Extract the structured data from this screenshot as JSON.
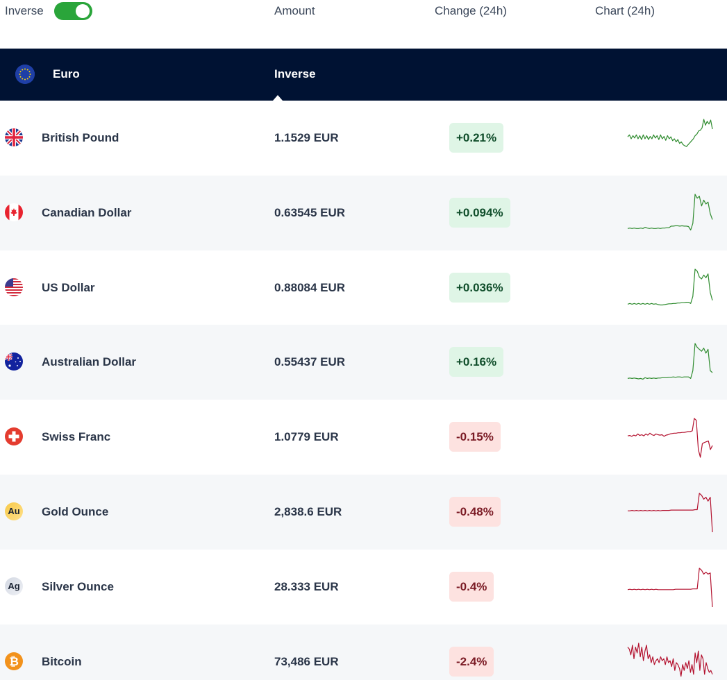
{
  "header": {
    "inverse_label": "Inverse",
    "inverse_on": true,
    "columns": [
      "Amount",
      "Change (24h)",
      "Chart (24h)"
    ],
    "toggle_color": "#2aa53a"
  },
  "base": {
    "currency": "Euro",
    "icon": "eu-flag-icon",
    "mode": "Inverse",
    "bar_color": "#001233"
  },
  "colors": {
    "up_line": "#2e8b2e",
    "down_line": "#b3112e",
    "up_badge_bg": "#dff5e6",
    "down_badge_bg": "#fde2e0"
  },
  "rows": [
    {
      "name": "British Pound",
      "icon": "uk-flag-icon",
      "amount": "1.1529 EUR",
      "change": "+0.21%",
      "direction": "up",
      "chart": [
        0.55,
        0.6,
        0.5,
        0.58,
        0.52,
        0.6,
        0.5,
        0.58,
        0.48,
        0.6,
        0.5,
        0.58,
        0.48,
        0.56,
        0.5,
        0.6,
        0.52,
        0.58,
        0.48,
        0.6,
        0.5,
        0.56,
        0.46,
        0.58,
        0.5,
        0.55,
        0.45,
        0.5,
        0.42,
        0.48,
        0.38,
        0.42,
        0.35,
        0.32,
        0.3,
        0.35,
        0.4,
        0.45,
        0.5,
        0.58,
        0.62,
        0.7,
        0.72,
        0.78,
        1.0,
        0.85,
        0.95,
        0.88,
        0.98,
        0.75
      ]
    },
    {
      "name": "Canadian Dollar",
      "icon": "canada-flag-icon",
      "amount": "0.63545 EUR",
      "change": "+0.094%",
      "direction": "up",
      "chart": [
        0.12,
        0.13,
        0.12,
        0.13,
        0.12,
        0.12,
        0.13,
        0.12,
        0.15,
        0.13,
        0.12,
        0.13,
        0.12,
        0.12,
        0.13,
        0.12,
        0.13,
        0.13,
        0.14,
        0.14,
        0.18,
        0.18,
        0.19,
        0.19,
        0.18,
        0.19,
        0.18,
        0.18,
        0.17,
        0.08,
        0.25,
        1.0,
        0.9,
        0.95,
        0.7,
        0.85,
        0.75,
        0.8,
        0.5,
        0.35
      ]
    },
    {
      "name": "US Dollar",
      "icon": "us-flag-icon",
      "amount": "0.88084 EUR",
      "change": "+0.036%",
      "direction": "up",
      "chart": [
        0.1,
        0.12,
        0.1,
        0.12,
        0.1,
        0.12,
        0.1,
        0.12,
        0.1,
        0.12,
        0.1,
        0.12,
        0.1,
        0.11,
        0.09,
        0.08,
        0.08,
        0.09,
        0.1,
        0.11,
        0.11,
        0.12,
        0.12,
        0.13,
        0.13,
        0.14,
        0.14,
        0.15,
        0.15,
        0.12,
        0.3,
        1.0,
        0.95,
        0.8,
        0.75,
        0.85,
        0.78,
        0.88,
        0.4,
        0.2
      ]
    },
    {
      "name": "Australian Dollar",
      "icon": "australia-flag-icon",
      "amount": "0.55437 EUR",
      "change": "+0.16%",
      "direction": "up",
      "chart": [
        0.1,
        0.11,
        0.1,
        0.11,
        0.1,
        0.09,
        0.1,
        0.08,
        0.12,
        0.1,
        0.11,
        0.1,
        0.11,
        0.1,
        0.11,
        0.11,
        0.12,
        0.12,
        0.12,
        0.13,
        0.13,
        0.14,
        0.13,
        0.14,
        0.14,
        0.13,
        0.14,
        0.14,
        0.14,
        0.1,
        0.3,
        1.0,
        0.9,
        0.85,
        0.8,
        0.88,
        0.75,
        0.85,
        0.3,
        0.25
      ]
    },
    {
      "name": "Swiss Franc",
      "icon": "switzerland-flag-icon",
      "amount": "1.0779 EUR",
      "change": "-0.15%",
      "direction": "down",
      "chart": [
        0.55,
        0.56,
        0.54,
        0.57,
        0.55,
        0.6,
        0.56,
        0.58,
        0.55,
        0.6,
        0.57,
        0.62,
        0.58,
        0.56,
        0.6,
        0.58,
        0.57,
        0.58,
        0.54,
        0.57,
        0.58,
        0.6,
        0.61,
        0.62,
        0.62,
        0.63,
        0.63,
        0.64,
        0.64,
        0.65,
        0.66,
        0.66,
        0.68,
        1.0,
        0.95,
        0.2,
        0.0,
        0.35,
        0.38,
        0.4,
        0.42,
        0.2,
        0.3
      ]
    },
    {
      "name": "Gold Ounce",
      "icon": "gold-icon",
      "amount": "2,838.6 EUR",
      "change": "-0.48%",
      "direction": "down",
      "chart": [
        0.55,
        0.55,
        0.56,
        0.55,
        0.56,
        0.55,
        0.56,
        0.55,
        0.56,
        0.55,
        0.56,
        0.55,
        0.56,
        0.55,
        0.56,
        0.55,
        0.56,
        0.56,
        0.56,
        0.56,
        0.57,
        0.57,
        0.57,
        0.57,
        0.57,
        0.57,
        0.57,
        0.57,
        0.57,
        0.57,
        0.57,
        0.58,
        0.58,
        1.0,
        0.95,
        0.85,
        0.9,
        0.8,
        0.9,
        0.0
      ]
    },
    {
      "name": "Silver Ounce",
      "icon": "silver-icon",
      "amount": "28.333 EUR",
      "change": "-0.4%",
      "direction": "down",
      "chart": [
        0.45,
        0.46,
        0.45,
        0.46,
        0.45,
        0.46,
        0.45,
        0.46,
        0.45,
        0.46,
        0.45,
        0.46,
        0.45,
        0.46,
        0.45,
        0.45,
        0.45,
        0.45,
        0.45,
        0.45,
        0.45,
        0.45,
        0.46,
        0.46,
        0.46,
        0.46,
        0.46,
        0.46,
        0.46,
        0.46,
        0.47,
        0.47,
        0.47,
        1.0,
        0.95,
        0.85,
        0.9,
        0.85,
        0.88,
        0.0
      ]
    },
    {
      "name": "Bitcoin",
      "icon": "bitcoin-icon",
      "amount": "73,486 EUR",
      "change": "-2.4%",
      "direction": "down",
      "chart": [
        0.9,
        0.85,
        0.7,
        0.95,
        0.6,
        0.9,
        0.75,
        1.0,
        0.65,
        0.9,
        0.55,
        0.8,
        0.95,
        0.6,
        0.7,
        0.5,
        0.65,
        0.45,
        0.55,
        0.6,
        0.5,
        0.65,
        0.55,
        0.6,
        0.45,
        0.65,
        0.5,
        0.55,
        0.4,
        0.6,
        0.3,
        0.5,
        0.45,
        0.35,
        0.15,
        0.45,
        0.3,
        0.5,
        0.35,
        0.55,
        0.25,
        0.45,
        0.2,
        0.75,
        0.5,
        0.8,
        0.3,
        0.7,
        0.6,
        0.2,
        0.5,
        0.35,
        0.25,
        0.3,
        0.2
      ]
    }
  ]
}
